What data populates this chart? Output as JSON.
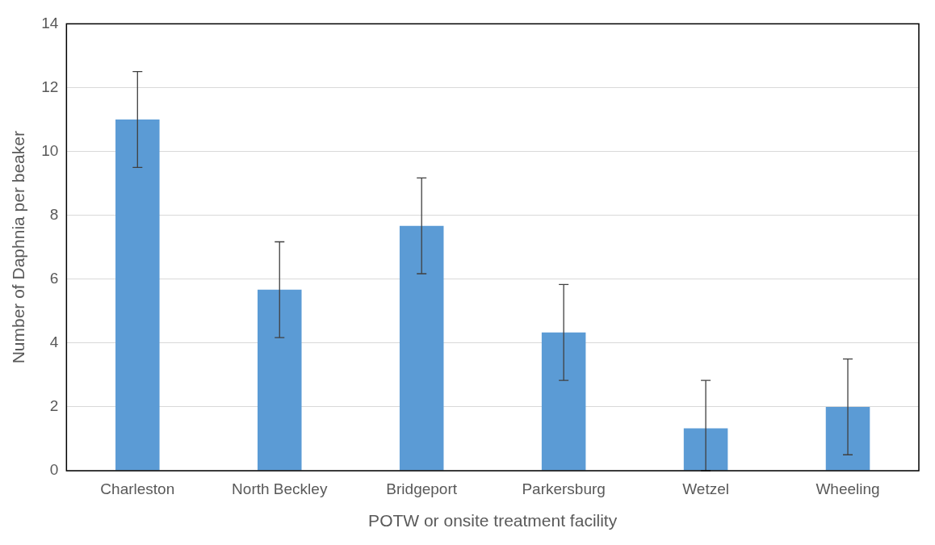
{
  "chart_data": {
    "type": "bar",
    "xlabel": "POTW or onsite treatment facility",
    "ylabel": "Number of Daphnia per beaker",
    "categories": [
      "Charleston",
      "North Beckley",
      "Bridgeport",
      "Parkersburg",
      "Wetzel",
      "Wheeling"
    ],
    "values": [
      11,
      5.67,
      7.67,
      4.33,
      1.33,
      2
    ],
    "errors": [
      1.5,
      1.5,
      1.5,
      1.5,
      [
        0,
        2.83
      ],
      1.5
    ],
    "color": "#5b9bd5",
    "ylim": [
      0,
      14
    ],
    "yticks": [
      0,
      2,
      4,
      6,
      8,
      10,
      12,
      14
    ],
    "grid": "y",
    "legend": false
  }
}
